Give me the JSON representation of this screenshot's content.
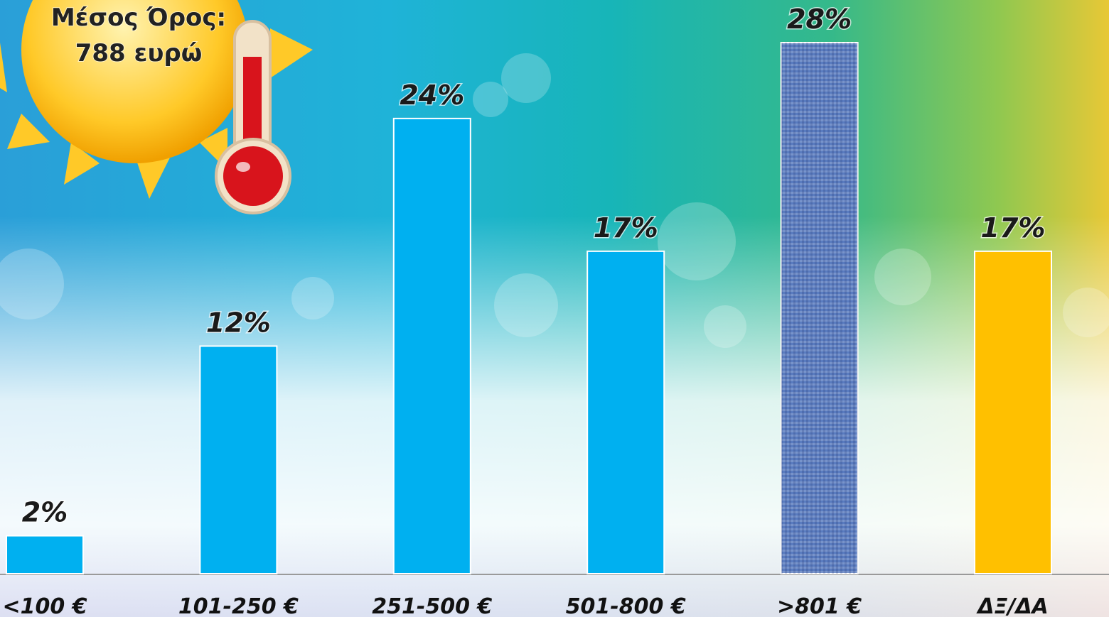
{
  "chart_data": {
    "type": "bar",
    "categories": [
      "<100 €",
      "101-250 €",
      "251-500 €",
      "501-800 €",
      ">801 €",
      "ΔΞ/ΔΑ"
    ],
    "values": [
      2,
      12,
      24,
      17,
      28,
      17
    ],
    "value_labels": [
      "2%",
      "12%",
      "24%",
      "17%",
      "28%",
      "17%"
    ],
    "colors": [
      "#00b0f0",
      "#00b0f0",
      "#00b0f0",
      "#00b0f0",
      "#5a7cc0",
      "#ffc000"
    ],
    "ylim": [
      0,
      28
    ],
    "annotation": [
      "Μέσος Όρος:",
      "788 ευρώ"
    ]
  }
}
